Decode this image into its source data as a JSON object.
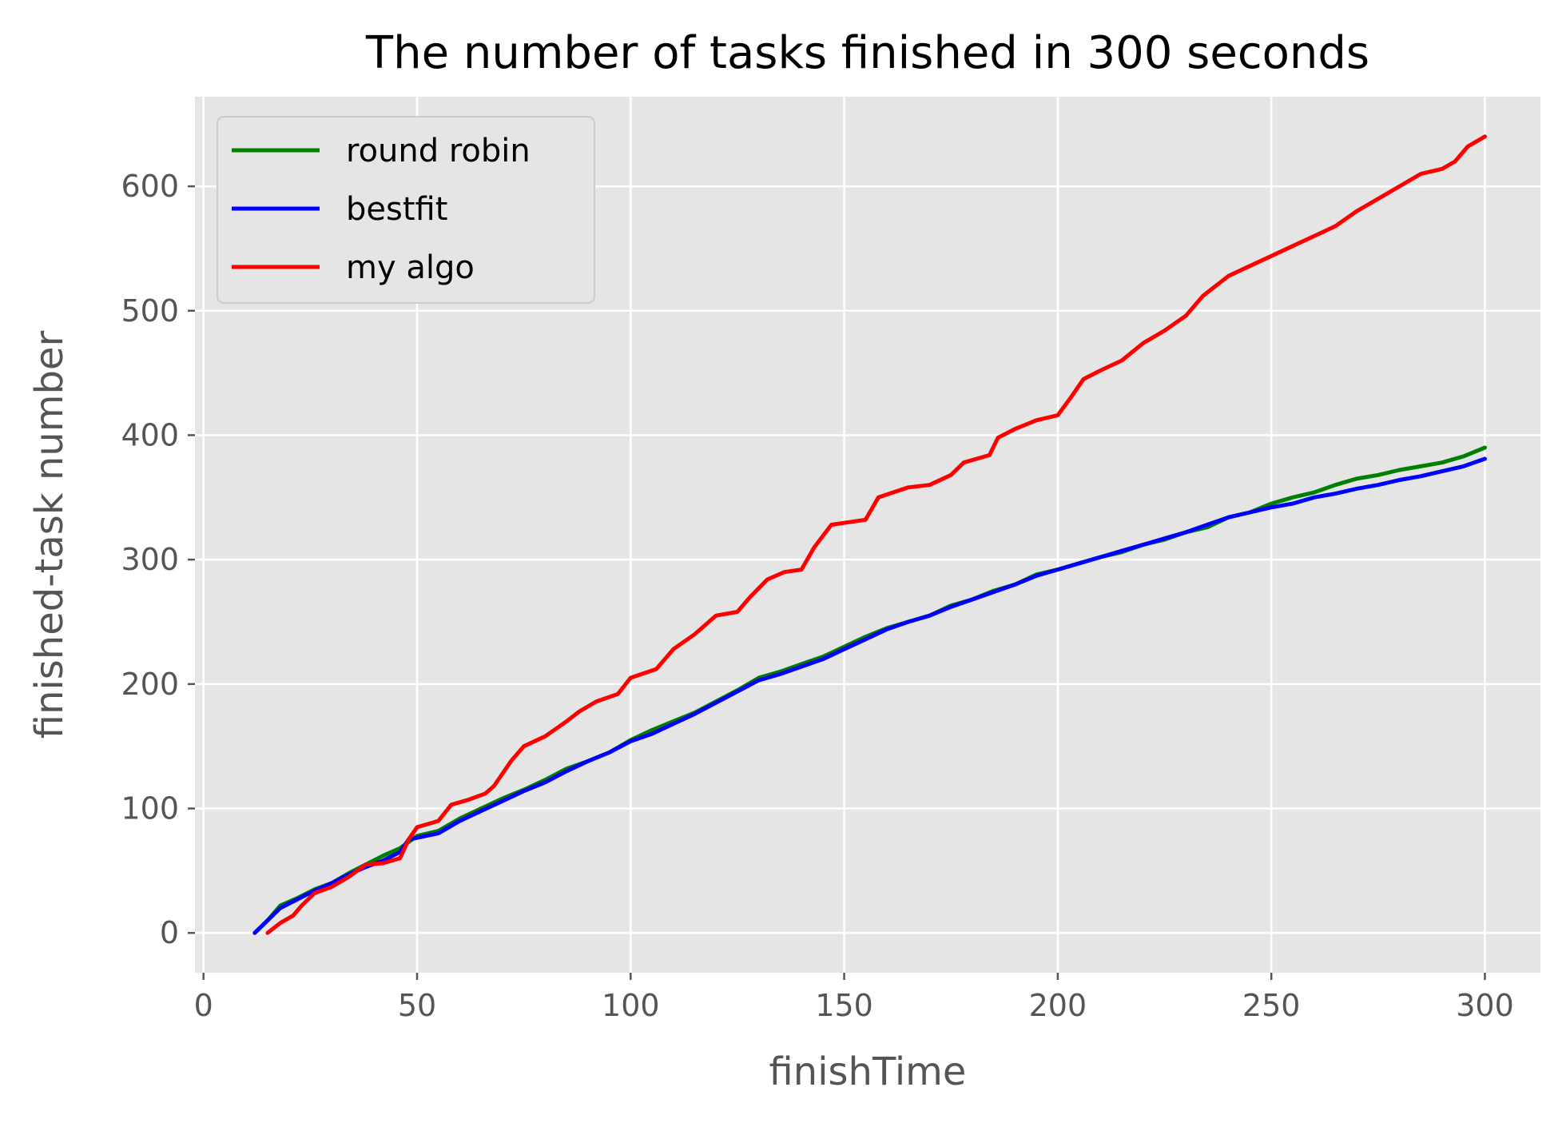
{
  "chart_data": {
    "type": "line",
    "title": "The number of tasks finished in 300 seconds",
    "xlabel": "finishTime",
    "ylabel": "finished-task number",
    "xlim": [
      -2,
      313
    ],
    "ylim": [
      -32,
      672
    ],
    "xticks": [
      0,
      50,
      100,
      150,
      200,
      250,
      300
    ],
    "yticks": [
      0,
      100,
      200,
      300,
      400,
      500,
      600
    ],
    "grid": true,
    "legend_position": "top-left",
    "background_color": "#e5e5e5",
    "series": [
      {
        "name": "round robin",
        "color": "#008000",
        "points": [
          [
            12,
            0
          ],
          [
            15,
            10
          ],
          [
            18,
            22
          ],
          [
            22,
            28
          ],
          [
            26,
            35
          ],
          [
            30,
            40
          ],
          [
            34,
            48
          ],
          [
            38,
            55
          ],
          [
            42,
            62
          ],
          [
            46,
            68
          ],
          [
            50,
            78
          ],
          [
            55,
            82
          ],
          [
            60,
            92
          ],
          [
            65,
            100
          ],
          [
            70,
            108
          ],
          [
            75,
            115
          ],
          [
            80,
            123
          ],
          [
            85,
            132
          ],
          [
            90,
            138
          ],
          [
            95,
            145
          ],
          [
            100,
            155
          ],
          [
            105,
            163
          ],
          [
            110,
            170
          ],
          [
            115,
            177
          ],
          [
            120,
            186
          ],
          [
            125,
            195
          ],
          [
            130,
            205
          ],
          [
            135,
            210
          ],
          [
            140,
            216
          ],
          [
            145,
            222
          ],
          [
            150,
            230
          ],
          [
            155,
            238
          ],
          [
            160,
            245
          ],
          [
            165,
            250
          ],
          [
            170,
            255
          ],
          [
            175,
            263
          ],
          [
            180,
            268
          ],
          [
            185,
            275
          ],
          [
            190,
            280
          ],
          [
            195,
            288
          ],
          [
            200,
            292
          ],
          [
            205,
            297
          ],
          [
            210,
            302
          ],
          [
            215,
            306
          ],
          [
            220,
            312
          ],
          [
            225,
            316
          ],
          [
            230,
            322
          ],
          [
            235,
            326
          ],
          [
            240,
            334
          ],
          [
            245,
            338
          ],
          [
            250,
            345
          ],
          [
            255,
            350
          ],
          [
            260,
            354
          ],
          [
            265,
            360
          ],
          [
            270,
            365
          ],
          [
            275,
            368
          ],
          [
            280,
            372
          ],
          [
            285,
            375
          ],
          [
            290,
            378
          ],
          [
            295,
            383
          ],
          [
            300,
            390
          ]
        ]
      },
      {
        "name": "bestfit",
        "color": "#0000ff",
        "points": [
          [
            12,
            0
          ],
          [
            15,
            10
          ],
          [
            18,
            20
          ],
          [
            22,
            27
          ],
          [
            26,
            34
          ],
          [
            30,
            40
          ],
          [
            34,
            47
          ],
          [
            38,
            53
          ],
          [
            42,
            58
          ],
          [
            46,
            65
          ],
          [
            48,
            75
          ],
          [
            55,
            80
          ],
          [
            60,
            90
          ],
          [
            65,
            98
          ],
          [
            70,
            106
          ],
          [
            75,
            114
          ],
          [
            80,
            121
          ],
          [
            85,
            130
          ],
          [
            90,
            138
          ],
          [
            95,
            145
          ],
          [
            100,
            154
          ],
          [
            105,
            160
          ],
          [
            110,
            168
          ],
          [
            115,
            176
          ],
          [
            120,
            185
          ],
          [
            125,
            194
          ],
          [
            130,
            203
          ],
          [
            135,
            208
          ],
          [
            140,
            214
          ],
          [
            145,
            220
          ],
          [
            150,
            228
          ],
          [
            155,
            236
          ],
          [
            160,
            244
          ],
          [
            165,
            250
          ],
          [
            170,
            255
          ],
          [
            175,
            262
          ],
          [
            180,
            268
          ],
          [
            185,
            274
          ],
          [
            190,
            280
          ],
          [
            195,
            287
          ],
          [
            200,
            292
          ],
          [
            205,
            297
          ],
          [
            210,
            302
          ],
          [
            215,
            307
          ],
          [
            220,
            312
          ],
          [
            225,
            317
          ],
          [
            230,
            322
          ],
          [
            235,
            328
          ],
          [
            240,
            334
          ],
          [
            245,
            338
          ],
          [
            250,
            342
          ],
          [
            255,
            345
          ],
          [
            260,
            350
          ],
          [
            265,
            353
          ],
          [
            270,
            357
          ],
          [
            275,
            360
          ],
          [
            280,
            364
          ],
          [
            285,
            367
          ],
          [
            290,
            371
          ],
          [
            295,
            375
          ],
          [
            300,
            381
          ]
        ]
      },
      {
        "name": "my algo",
        "color": "#ff0000",
        "points": [
          [
            15,
            0
          ],
          [
            18,
            8
          ],
          [
            21,
            14
          ],
          [
            23,
            22
          ],
          [
            26,
            32
          ],
          [
            30,
            37
          ],
          [
            34,
            45
          ],
          [
            38,
            55
          ],
          [
            42,
            56
          ],
          [
            46,
            60
          ],
          [
            48,
            75
          ],
          [
            50,
            85
          ],
          [
            55,
            90
          ],
          [
            58,
            103
          ],
          [
            62,
            107
          ],
          [
            66,
            112
          ],
          [
            68,
            118
          ],
          [
            72,
            138
          ],
          [
            75,
            150
          ],
          [
            80,
            158
          ],
          [
            85,
            170
          ],
          [
            88,
            178
          ],
          [
            92,
            186
          ],
          [
            97,
            192
          ],
          [
            100,
            205
          ],
          [
            106,
            212
          ],
          [
            110,
            228
          ],
          [
            115,
            240
          ],
          [
            120,
            255
          ],
          [
            125,
            258
          ],
          [
            128,
            270
          ],
          [
            132,
            284
          ],
          [
            136,
            290
          ],
          [
            140,
            292
          ],
          [
            143,
            310
          ],
          [
            147,
            328
          ],
          [
            155,
            332
          ],
          [
            158,
            350
          ],
          [
            165,
            358
          ],
          [
            170,
            360
          ],
          [
            175,
            368
          ],
          [
            178,
            378
          ],
          [
            184,
            384
          ],
          [
            186,
            398
          ],
          [
            190,
            405
          ],
          [
            195,
            412
          ],
          [
            200,
            416
          ],
          [
            203,
            430
          ],
          [
            206,
            445
          ],
          [
            210,
            452
          ],
          [
            215,
            460
          ],
          [
            220,
            474
          ],
          [
            225,
            484
          ],
          [
            230,
            496
          ],
          [
            234,
            512
          ],
          [
            240,
            528
          ],
          [
            245,
            536
          ],
          [
            250,
            544
          ],
          [
            255,
            552
          ],
          [
            260,
            560
          ],
          [
            265,
            568
          ],
          [
            270,
            580
          ],
          [
            275,
            590
          ],
          [
            280,
            600
          ],
          [
            285,
            610
          ],
          [
            290,
            614
          ],
          [
            293,
            620
          ],
          [
            296,
            632
          ],
          [
            300,
            640
          ]
        ]
      }
    ]
  }
}
